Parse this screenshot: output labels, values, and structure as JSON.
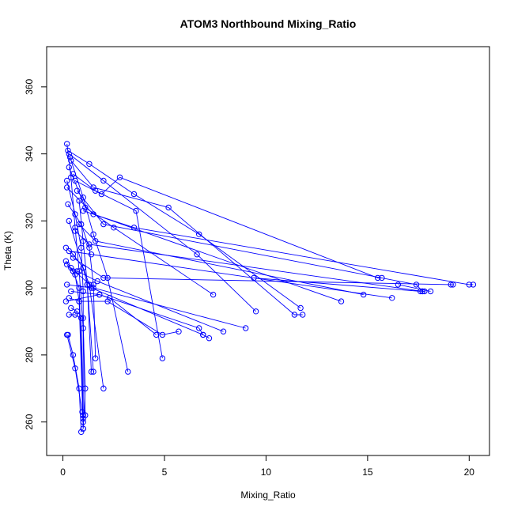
{
  "chart_data": {
    "type": "scatter",
    "title": "ATOM3 Northbound Mixing_Ratio",
    "xlabel": "Mixing_Ratio",
    "ylabel": "Theta (K)",
    "xlim": [
      -0.8,
      21.0
    ],
    "ylim": [
      250.0,
      372.0
    ],
    "xticks": [
      0,
      5,
      10,
      15,
      20
    ],
    "yticks": [
      260,
      280,
      300,
      320,
      340,
      360
    ],
    "grid": false,
    "legend": "none",
    "point_style": "open-circle",
    "line_style": "connected",
    "color": "#0000ff",
    "series": [
      {
        "points": [
          [
            0.2,
            343
          ],
          [
            0.4,
            333
          ],
          [
            0.6,
            318
          ],
          [
            0.8,
            305
          ],
          [
            1.0,
            288
          ],
          [
            1.1,
            270
          ],
          [
            1.0,
            258
          ]
        ]
      },
      {
        "points": [
          [
            0.25,
            341
          ],
          [
            1.3,
            337
          ],
          [
            3.5,
            328
          ],
          [
            6.7,
            316
          ],
          [
            11.7,
            294
          ]
        ]
      },
      {
        "points": [
          [
            0.3,
            340
          ],
          [
            2.0,
            332
          ],
          [
            6.6,
            310
          ],
          [
            9.5,
            293
          ]
        ]
      },
      {
        "points": [
          [
            0.35,
            339
          ],
          [
            1.0,
            327
          ],
          [
            1.5,
            316
          ],
          [
            2.2,
            303
          ],
          [
            3.2,
            275
          ]
        ]
      },
      {
        "points": [
          [
            0.4,
            338
          ],
          [
            1.5,
            330
          ],
          [
            5.2,
            324
          ],
          [
            11.4,
            292
          ],
          [
            11.8,
            292
          ]
        ]
      },
      {
        "points": [
          [
            0.3,
            336
          ],
          [
            1.1,
            324
          ],
          [
            2.5,
            318
          ],
          [
            7.4,
            298
          ]
        ]
      },
      {
        "points": [
          [
            0.5,
            334
          ],
          [
            1.6,
            329
          ],
          [
            3.6,
            323
          ],
          [
            4.9,
            279
          ]
        ]
      },
      {
        "points": [
          [
            0.6,
            332
          ],
          [
            1.9,
            328
          ],
          [
            2.8,
            333
          ],
          [
            15.5,
            303
          ],
          [
            15.7,
            303
          ]
        ]
      },
      {
        "points": [
          [
            0.2,
            332
          ],
          [
            0.6,
            322
          ],
          [
            0.9,
            312
          ],
          [
            1.0,
            299
          ],
          [
            1.0,
            261
          ]
        ]
      },
      {
        "points": [
          [
            0.2,
            330
          ],
          [
            1.5,
            322
          ],
          [
            13.7,
            296
          ]
        ]
      },
      {
        "points": [
          [
            0.7,
            329
          ],
          [
            2.0,
            319
          ],
          [
            17.4,
            301
          ],
          [
            17.7,
            299
          ]
        ]
      },
      {
        "points": [
          [
            0.8,
            326
          ],
          [
            1.0,
            314
          ],
          [
            1.2,
            301
          ],
          [
            1.4,
            275
          ]
        ]
      },
      {
        "points": [
          [
            0.25,
            325
          ],
          [
            0.9,
            319
          ],
          [
            1.3,
            312
          ],
          [
            1.5,
            301
          ],
          [
            1.6,
            279
          ]
        ]
      },
      {
        "points": [
          [
            1.0,
            323
          ],
          [
            3.5,
            318
          ],
          [
            20.0,
            301
          ],
          [
            20.2,
            301
          ]
        ]
      },
      {
        "points": [
          [
            0.3,
            320
          ],
          [
            1.0,
            306
          ],
          [
            1.2,
            301
          ],
          [
            1.5,
            275
          ]
        ]
      },
      {
        "points": [
          [
            0.8,
            319
          ],
          [
            1.6,
            314
          ],
          [
            14.8,
            298
          ]
        ]
      },
      {
        "points": [
          [
            0.6,
            317
          ],
          [
            1.3,
            313
          ],
          [
            17.7,
            299
          ],
          [
            17.8,
            299
          ]
        ]
      },
      {
        "points": [
          [
            0.15,
            312
          ],
          [
            0.5,
            310
          ],
          [
            1.0,
            306
          ],
          [
            1.3,
            301
          ],
          [
            2.0,
            270
          ]
        ]
      },
      {
        "points": [
          [
            0.3,
            311
          ],
          [
            1.4,
            310
          ],
          [
            16.2,
            297
          ]
        ]
      },
      {
        "points": [
          [
            0.5,
            309
          ],
          [
            2.0,
            303
          ],
          [
            19.1,
            301
          ],
          [
            19.2,
            301
          ]
        ]
      },
      {
        "points": [
          [
            0.15,
            308
          ],
          [
            0.5,
            305
          ],
          [
            0.8,
            300
          ],
          [
            1.0,
            262
          ]
        ]
      },
      {
        "points": [
          [
            0.2,
            307
          ],
          [
            0.6,
            304
          ],
          [
            0.8,
            296
          ],
          [
            1.0,
            258
          ]
        ]
      },
      {
        "points": [
          [
            0.4,
            306
          ],
          [
            1.5,
            300
          ],
          [
            9.0,
            288
          ]
        ]
      },
      {
        "points": [
          [
            0.7,
            305
          ],
          [
            1.7,
            302
          ],
          [
            7.9,
            287
          ]
        ]
      },
      {
        "points": [
          [
            0.2,
            301
          ],
          [
            1.4,
            300
          ],
          [
            6.9,
            286
          ],
          [
            7.2,
            285
          ]
        ]
      },
      {
        "points": [
          [
            0.4,
            299
          ],
          [
            1.8,
            298
          ],
          [
            6.7,
            288
          ],
          [
            6.9,
            286
          ]
        ]
      },
      {
        "points": [
          [
            0.15,
            296
          ],
          [
            1.8,
            298
          ],
          [
            2.3,
            297
          ],
          [
            4.6,
            286
          ]
        ]
      },
      {
        "points": [
          [
            0.3,
            297
          ],
          [
            0.8,
            296
          ],
          [
            2.2,
            296
          ],
          [
            4.9,
            286
          ],
          [
            5.7,
            287
          ]
        ]
      },
      {
        "points": [
          [
            0.4,
            294
          ],
          [
            0.7,
            293
          ],
          [
            1.0,
            291
          ],
          [
            1.1,
            262
          ]
        ]
      },
      {
        "points": [
          [
            0.3,
            292
          ],
          [
            0.6,
            292
          ],
          [
            0.9,
            291
          ],
          [
            1.0,
            262
          ]
        ]
      },
      {
        "points": [
          [
            0.25,
            286
          ],
          [
            0.5,
            280
          ],
          [
            0.8,
            270
          ],
          [
            0.9,
            257
          ]
        ]
      },
      {
        "points": [
          [
            0.2,
            286
          ],
          [
            0.6,
            276
          ],
          [
            0.95,
            263
          ],
          [
            1.0,
            260
          ]
        ]
      },
      {
        "points": [
          [
            9.4,
            303
          ],
          [
            17.6,
            299
          ]
        ]
      },
      {
        "points": [
          [
            16.5,
            301
          ],
          [
            18.1,
            299
          ]
        ]
      }
    ]
  }
}
